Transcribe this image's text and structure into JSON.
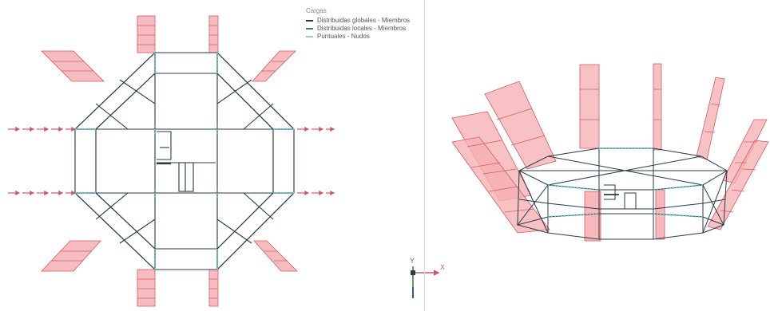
{
  "legend": {
    "title": "Cargas",
    "items": [
      {
        "label": "Distribuidas globales - Miembros",
        "color": "#6b1b2a"
      },
      {
        "label": "Distribuidas locales - Miembros",
        "color": "#2f7f7a"
      },
      {
        "label": "Puntuales - Nudos",
        "color": "#8fd0cf"
      }
    ]
  },
  "axes": {
    "y_label": "Y",
    "x_label": "X"
  },
  "colors": {
    "member": "#2a3b44",
    "node": "#58c9c5",
    "load_fill": "#f4a3a8",
    "load_stroke": "#d25c66"
  }
}
